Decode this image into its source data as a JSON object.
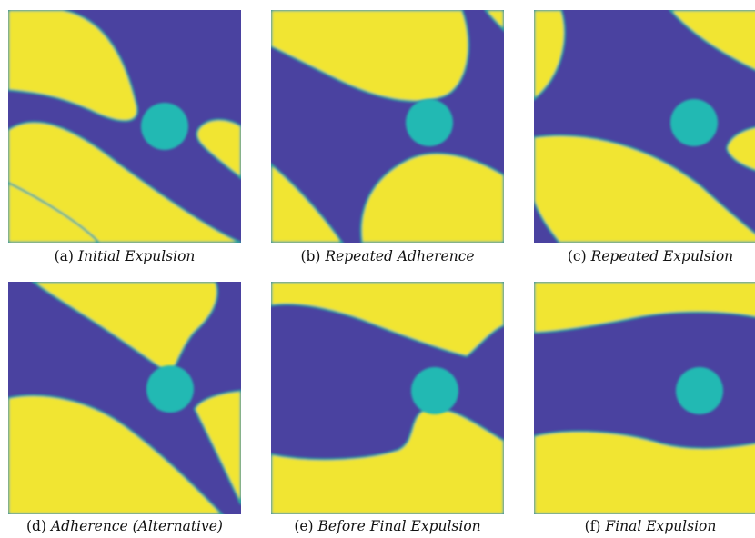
{
  "colors": {
    "background": "#4a42a0",
    "phase": "#f1e531",
    "particle": "#21b9b3",
    "interface": "#2fa7a0"
  },
  "panels": [
    {
      "id": "a",
      "prefix": "(a)",
      "caption": "Initial Expulsion"
    },
    {
      "id": "b",
      "prefix": "(b)",
      "caption": "Repeated Adherence"
    },
    {
      "id": "c",
      "prefix": "(c)",
      "caption": "Repeated Expulsion"
    },
    {
      "id": "d",
      "prefix": "(d)",
      "caption": "Adherence (Alternative)"
    },
    {
      "id": "e",
      "prefix": "(e)",
      "caption": "Before Final Expulsion"
    },
    {
      "id": "f",
      "prefix": "(f)",
      "caption": "Final Expulsion"
    }
  ]
}
